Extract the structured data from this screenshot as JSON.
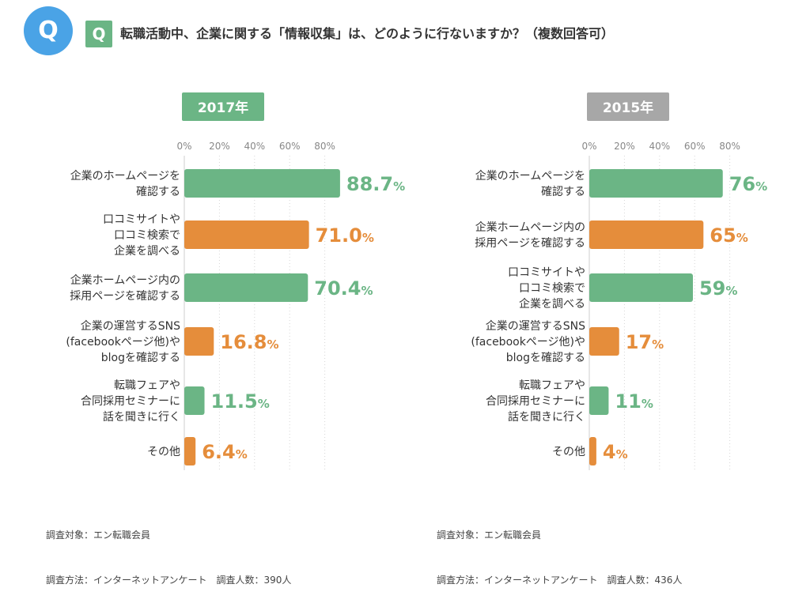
{
  "header": {
    "q_circle_label": "Q",
    "q_square_label": "Q",
    "question": "転職活動中、企業に関する「情報収集」は、どのように行ないますか？（複数回答可）"
  },
  "colors": {
    "green": "#6bb585",
    "orange": "#e58d3b",
    "badge_2017": "#6bb585",
    "badge_2015": "#a7a7a7",
    "axis_text": "#888888",
    "q_circle": "#4aa3e6"
  },
  "chart_data": [
    {
      "type": "bar",
      "orientation": "horizontal",
      "title": "2017年",
      "categories": [
        [
          "企業のホームページを",
          "確認する"
        ],
        [
          "口コミサイトや",
          "口コミ検索で",
          "企業を調べる"
        ],
        [
          "企業ホームページ内の",
          "採用ページを確認する"
        ],
        [
          "企業の運営するSNS",
          "(facebookページ他)や",
          "blogを確認する"
        ],
        [
          "転職フェアや",
          "合同採用セミナーに",
          "話を聞きに行く"
        ],
        [
          "その他"
        ]
      ],
      "values": [
        88.7,
        71.0,
        70.4,
        16.8,
        11.5,
        6.4
      ],
      "value_labels": [
        "88.7",
        "71.0",
        "70.4",
        "16.8",
        "11.5",
        "6.4"
      ],
      "unit": "%",
      "bar_colors": [
        "green",
        "orange",
        "green",
        "orange",
        "green",
        "orange"
      ],
      "ticks": [
        "0%",
        "20%",
        "40%",
        "60%",
        "80%"
      ],
      "xlim": [
        0,
        100
      ]
    },
    {
      "type": "bar",
      "orientation": "horizontal",
      "title": "2015年",
      "categories": [
        [
          "企業のホームページを",
          "確認する"
        ],
        [
          "企業ホームページ内の",
          "採用ページを確認する"
        ],
        [
          "口コミサイトや",
          "口コミ検索で",
          "企業を調べる"
        ],
        [
          "企業の運営するSNS",
          "(facebookページ他)や",
          "blogを確認する"
        ],
        [
          "転職フェアや",
          "合同採用セミナーに",
          "話を聞きに行く"
        ],
        [
          "その他"
        ]
      ],
      "values": [
        76,
        65,
        59,
        17,
        11,
        4
      ],
      "value_labels": [
        "76",
        "65",
        "59",
        "17",
        "11",
        "4"
      ],
      "unit": "%",
      "bar_colors": [
        "green",
        "orange",
        "green",
        "orange",
        "green",
        "orange"
      ],
      "ticks": [
        "0%",
        "20%",
        "40%",
        "60%",
        "80%"
      ],
      "xlim": [
        0,
        100
      ]
    }
  ],
  "notes": [
    {
      "line1": "調査対象：エン転職会員",
      "line2": "調査方法：インターネットアンケート　調査人数：390人"
    },
    {
      "line1": "調査対象：エン転職会員",
      "line2": "調査方法：インターネットアンケート　調査人数：436人"
    }
  ]
}
